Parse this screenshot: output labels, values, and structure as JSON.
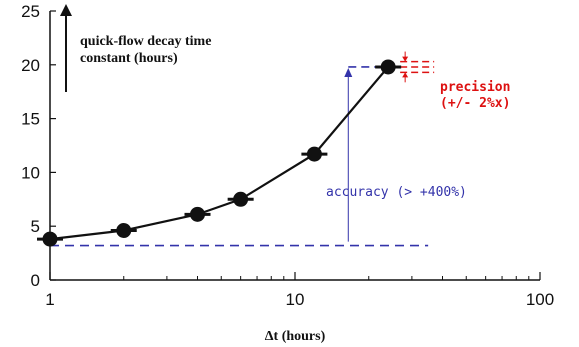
{
  "chart_data": {
    "type": "line",
    "x_scale": "log",
    "xlim": [
      1,
      100
    ],
    "ylim": [
      0,
      25
    ],
    "x_ticks": [
      "1",
      "10",
      "100"
    ],
    "y_ticks": [
      "0",
      "5",
      "10",
      "15",
      "20",
      "25"
    ],
    "xlabel": "Δt (hours)",
    "ylabel": "",
    "grid": false,
    "series": [
      {
        "x": [
          1,
          2,
          4,
          6,
          12,
          24
        ],
        "y": [
          3.8,
          4.6,
          6.1,
          7.5,
          11.7,
          19.8
        ]
      }
    ],
    "annotations": {
      "ylabel_arrow_text": [
        "quick-flow decay time",
        "constant (hours)"
      ],
      "accuracy_label": "accuracy (> +400%)",
      "precision_label": [
        "precision",
        "(+/- 2%x)"
      ],
      "accuracy_baseline_y": 3.2,
      "accuracy_top_y": 19.8,
      "precision_upper_y": 20.3,
      "precision_lower_y": 19.3
    },
    "colors": {
      "series": "#111111",
      "accuracy": "#3333aa",
      "precision": "#dd1111"
    }
  }
}
